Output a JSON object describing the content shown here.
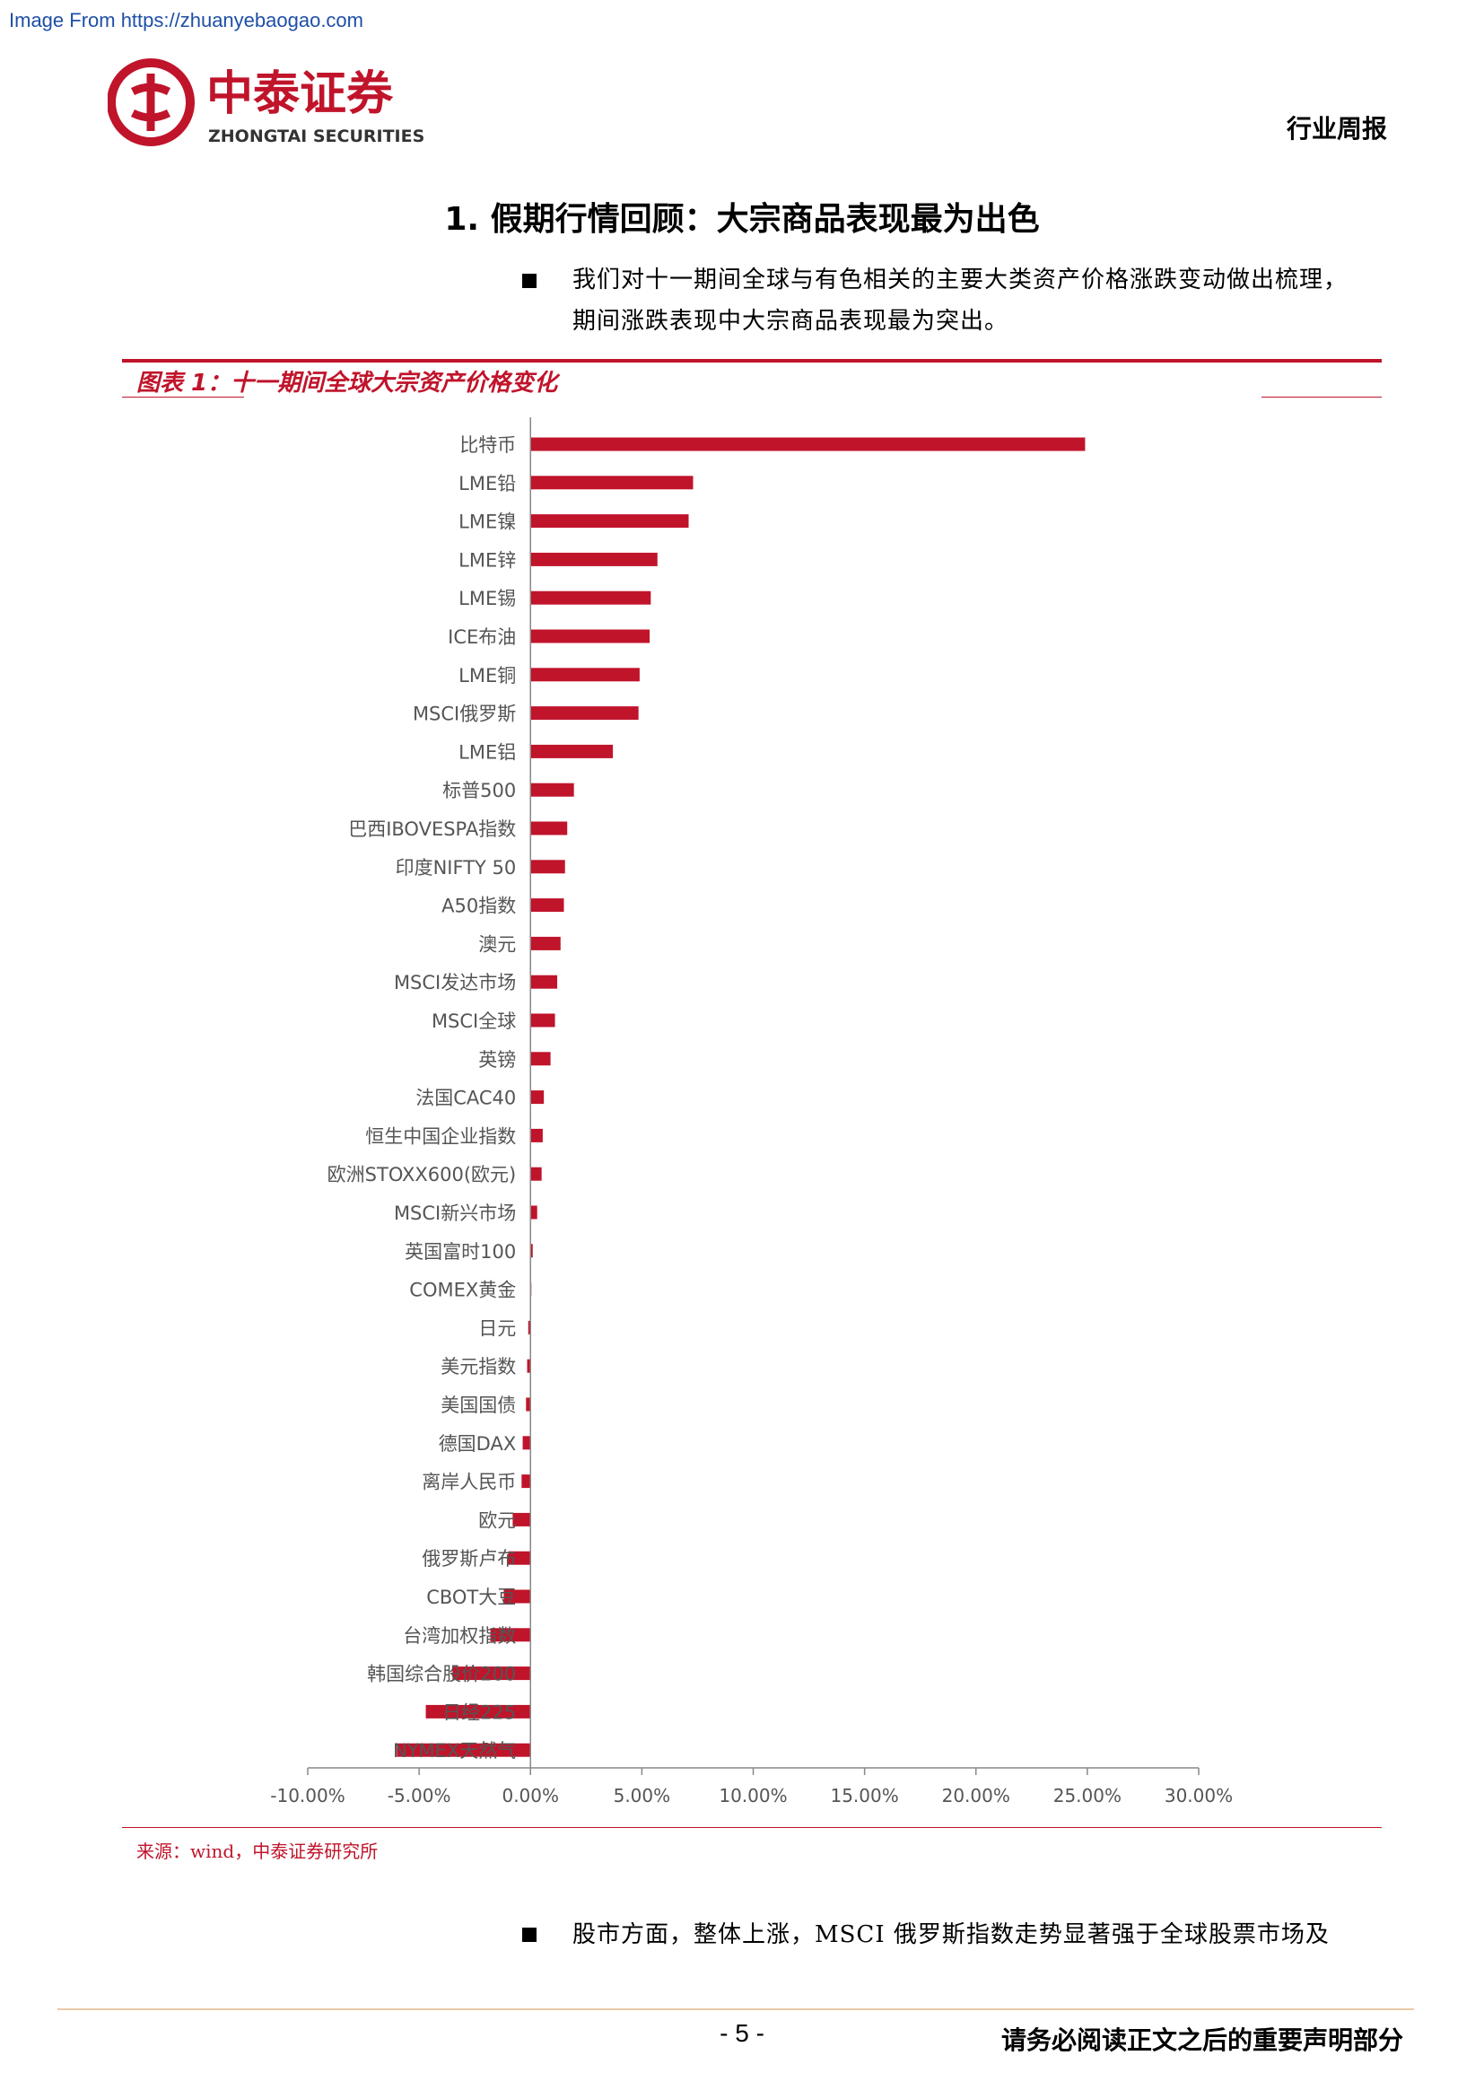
{
  "page": {
    "source_url": "Image From https://zhuanyebaogao.com",
    "brand_cn": "中泰证券",
    "brand_en": "ZHONGTAI SECURITIES",
    "report_type": "行业周报",
    "section_title": "1. 假期行情回顾：大宗商品表现最为出色",
    "paragraph1_line1": "我们对十一期间全球与有色相关的主要大类资产价格涨跌变动做出梳理，",
    "paragraph1_line2": "期间涨跌表现中大宗商品表现最为突出。",
    "figure_title": "图表 1：十一期间全球大宗资产价格变化",
    "source_note": "来源：wind，中泰证券研究所",
    "paragraph2": "股市方面，整体上涨，MSCI 俄罗斯指数走势显著强于全球股票市场及",
    "page_number": "- 5 -",
    "disclaimer": "请务必阅读正文之后的重要声明部分"
  },
  "colors": {
    "brand_red": "#c0142b",
    "bar": "#c0142b",
    "axis": "#888888"
  },
  "chart_data": {
    "type": "bar",
    "orientation": "horizontal",
    "categories": [
      "比特币",
      "LME铅",
      "LME镍",
      "LME锌",
      "LME锡",
      "ICE布油",
      "LME铜",
      "MSCI俄罗斯",
      "LME铝",
      "标普500",
      "巴西IBOVESPA指数",
      "印度NIFTY 50",
      "A50指数",
      "澳元",
      "MSCI发达市场",
      "MSCI全球",
      "英镑",
      "法国CAC40",
      "恒生中国企业指数",
      "欧洲STOXX600(欧元)",
      "MSCI新兴市场",
      "英国富时100",
      "COMEX黄金",
      "日元",
      "美元指数",
      "美国国债",
      "德国DAX",
      "离岸人民币",
      "欧元",
      "俄罗斯卢布",
      "CBOT大豆",
      "台湾加权指数",
      "韩国综合股价200",
      "日经225",
      "NYMEX天然气"
    ],
    "values": [
      24.9,
      7.3,
      7.1,
      5.7,
      5.4,
      5.35,
      4.9,
      4.85,
      3.7,
      1.95,
      1.65,
      1.55,
      1.5,
      1.35,
      1.2,
      1.1,
      0.9,
      0.6,
      0.55,
      0.5,
      0.3,
      0.1,
      0.0,
      -0.1,
      -0.15,
      -0.2,
      -0.35,
      -0.4,
      -0.8,
      -1.0,
      -1.2,
      -1.8,
      -3.5,
      -4.7,
      -6.0
    ],
    "tick_labels": [
      "-10.00%",
      "-5.00%",
      "0.00%",
      "5.00%",
      "10.00%",
      "15.00%",
      "20.00%",
      "25.00%",
      "30.00%"
    ],
    "xlim": [
      -10,
      30
    ],
    "tick_step": 5,
    "unit": "%"
  }
}
